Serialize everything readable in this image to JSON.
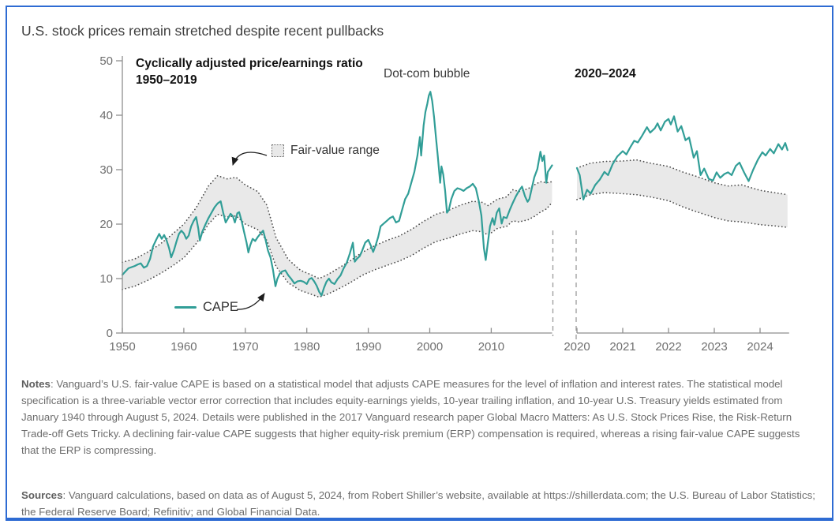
{
  "figure": {
    "title": "U.S. stock prices remain stretched despite recent pullbacks",
    "notes_label": "Notes",
    "notes_text": ": Vanguard’s U.S. fair-value CAPE is based on a statistical model that adjusts CAPE measures for the level of inflation and interest rates. The statistical model specification is a three-variable vector error correction that includes equity-earnings yields, 10-year trailing inflation, and 10-year U.S. Treasury yields estimated from January 1940 through August 5, 2024. Details were published in the 2017 Vanguard research paper Global Macro Matters: As U.S. Stock Prices Rise, the Risk-Return Trade-off Gets Tricky. A declining fair-value CAPE suggests that higher equity-risk premium (ERP) compensation is required, whereas a rising fair-value CAPE suggests that the ERP is compressing.",
    "sources_label": "Sources",
    "sources_text": ": Vanguard calculations, based on data as of August 5, 2024, from Robert Shiller’s website, available at https://shillerdata.com; the U.S. Bureau of Labor Statistics; the Federal Reserve Board; Refinitiv; and Global Financial Data."
  },
  "colors": {
    "border_blue": "#2e6bd3",
    "cape_teal": "#319e97",
    "band_fill": "#e9e9e9",
    "band_dots": "#4c4c4c",
    "axis_gray": "#8f8f8f",
    "tick_text": "#6f6f6f",
    "arrow": "#1d1d1d"
  },
  "chart_data": {
    "type": "line",
    "title": "Cyclically adjusted price/earnings ratio",
    "subtitle_left": "1950–2019",
    "title_right": "2020–2024",
    "annotation_dotcom": "Dot-com bubble",
    "legend_band": "Fair-value range",
    "legend_line": "CAPE",
    "ylabel": "",
    "xlabel": "",
    "ylim": [
      0,
      50
    ],
    "yticks": [
      0,
      10,
      20,
      30,
      40,
      50
    ],
    "grid": false,
    "left_panel": {
      "x_range": [
        1950,
        2019.9
      ],
      "xticks": [
        1950,
        1960,
        1970,
        1980,
        1990,
        2000,
        2010
      ],
      "cape": {
        "x": [
          1950.0,
          1950.5,
          1951.0,
          1951.5,
          1952.0,
          1952.5,
          1953.0,
          1953.5,
          1954.0,
          1954.5,
          1955.0,
          1955.5,
          1956.0,
          1956.4,
          1956.8,
          1957.2,
          1957.6,
          1957.95,
          1958.4,
          1958.8,
          1959.2,
          1959.6,
          1960.0,
          1960.4,
          1960.8,
          1961.2,
          1961.6,
          1962.0,
          1962.35,
          1962.6,
          1963.0,
          1963.5,
          1964.0,
          1964.5,
          1965.0,
          1965.5,
          1966.0,
          1966.4,
          1966.8,
          1967.2,
          1967.6,
          1968.0,
          1968.3,
          1968.7,
          1969.0,
          1969.4,
          1969.8,
          1970.2,
          1970.5,
          1970.8,
          1971.2,
          1971.6,
          1972.0,
          1972.5,
          1972.9,
          1973.3,
          1973.7,
          1974.1,
          1974.5,
          1974.9,
          1975.2,
          1975.6,
          1976.0,
          1976.5,
          1977.0,
          1977.5,
          1978.0,
          1978.5,
          1979.0,
          1979.5,
          1980.0,
          1980.4,
          1980.8,
          1981.2,
          1981.6,
          1982.0,
          1982.4,
          1982.8,
          1983.2,
          1983.6,
          1984.0,
          1984.5,
          1985.0,
          1985.5,
          1986.0,
          1986.5,
          1987.0,
          1987.5,
          1987.8,
          1988.2,
          1988.6,
          1989.0,
          1989.5,
          1990.0,
          1990.4,
          1990.8,
          1991.2,
          1991.6,
          1992.0,
          1992.5,
          1993.0,
          1993.5,
          1994.0,
          1994.5,
          1995.0,
          1995.5,
          1996.0,
          1996.5,
          1997.0,
          1997.5,
          1998.0,
          1998.4,
          1998.6,
          1999.0,
          1999.3,
          1999.6,
          1999.85,
          2000.1,
          2000.4,
          2000.7,
          2001.0,
          2001.3,
          2001.7,
          2001.9,
          2002.2,
          2002.5,
          2002.8,
          2003.1,
          2003.5,
          2004.0,
          2004.5,
          2005.0,
          2005.5,
          2006.0,
          2006.5,
          2007.0,
          2007.5,
          2008.0,
          2008.4,
          2008.8,
          2009.1,
          2009.4,
          2009.8,
          2010.2,
          2010.5,
          2010.9,
          2011.3,
          2011.7,
          2012.0,
          2012.5,
          2013.0,
          2013.5,
          2014.0,
          2014.5,
          2015.0,
          2015.5,
          2015.9,
          2016.2,
          2016.6,
          2017.0,
          2017.5,
          2018.0,
          2018.3,
          2018.6,
          2018.95,
          2019.2,
          2019.5,
          2019.9
        ],
        "y": [
          10.7,
          11.3,
          11.9,
          12.1,
          12.3,
          12.6,
          12.8,
          12.0,
          12.3,
          13.6,
          15.9,
          17.1,
          18.2,
          17.3,
          18.0,
          17.0,
          15.6,
          13.9,
          15.2,
          16.8,
          18.2,
          18.8,
          18.3,
          17.3,
          17.9,
          19.6,
          20.6,
          21.3,
          19.2,
          17.0,
          18.6,
          19.9,
          21.1,
          22.1,
          23.1,
          23.8,
          24.2,
          22.1,
          20.3,
          21.1,
          21.9,
          21.4,
          20.3,
          22.0,
          22.2,
          20.6,
          18.6,
          16.6,
          14.8,
          16.1,
          17.3,
          16.9,
          17.6,
          18.3,
          18.8,
          17.1,
          15.1,
          13.9,
          11.6,
          8.6,
          9.9,
          10.9,
          11.3,
          11.5,
          10.6,
          9.9,
          9.1,
          9.5,
          9.6,
          9.4,
          9.0,
          9.9,
          10.1,
          9.5,
          8.7,
          7.6,
          6.9,
          8.3,
          9.4,
          10.0,
          9.3,
          9.0,
          9.9,
          10.6,
          11.9,
          12.9,
          14.6,
          16.6,
          13.1,
          13.7,
          14.1,
          15.1,
          16.6,
          17.1,
          16.1,
          14.9,
          16.1,
          17.6,
          19.6,
          20.1,
          20.6,
          21.1,
          21.4,
          20.3,
          20.6,
          22.6,
          24.6,
          25.6,
          27.6,
          29.6,
          32.6,
          36.0,
          32.6,
          38.1,
          40.6,
          42.1,
          43.6,
          44.3,
          42.6,
          39.6,
          36.0,
          32.6,
          27.6,
          30.6,
          29.1,
          26.1,
          22.1,
          22.6,
          24.6,
          26.1,
          26.6,
          26.4,
          26.1,
          26.6,
          26.9,
          27.4,
          26.6,
          24.1,
          21.6,
          15.6,
          13.4,
          16.1,
          19.6,
          21.1,
          19.9,
          22.1,
          22.9,
          20.1,
          21.3,
          21.1,
          22.6,
          23.9,
          25.1,
          26.1,
          26.9,
          25.1,
          24.1,
          24.6,
          26.6,
          28.6,
          30.1,
          33.3,
          31.6,
          32.6,
          27.6,
          29.6,
          30.1,
          30.8
        ]
      },
      "band": {
        "x": [
          1950,
          1952,
          1954,
          1956,
          1958,
          1960,
          1962,
          1964,
          1965.5,
          1967,
          1968.5,
          1970,
          1972,
          1973.5,
          1975,
          1977,
          1979,
          1980.5,
          1982,
          1983.5,
          1985,
          1987,
          1989,
          1991,
          1993,
          1995,
          1997,
          1999,
          2001,
          2003,
          2005,
          2007,
          2008.5,
          2009.5,
          2011,
          2012.5,
          2013.5,
          2014.5,
          2016,
          2017,
          2018,
          2019,
          2019.9
        ],
        "top": [
          13.0,
          13.6,
          14.8,
          16.2,
          18.0,
          20.0,
          23.0,
          27.0,
          28.9,
          28.3,
          28.6,
          27.2,
          26.0,
          23.5,
          17.5,
          13.5,
          11.5,
          10.8,
          10.0,
          10.8,
          11.8,
          13.2,
          14.8,
          16.0,
          17.0,
          17.8,
          19.0,
          20.5,
          21.8,
          22.5,
          23.5,
          24.2,
          24.0,
          23.4,
          24.6,
          25.0,
          26.3,
          26.0,
          26.5,
          27.2,
          27.8,
          27.6,
          27.8
        ],
        "bottom": [
          8.0,
          8.6,
          9.6,
          10.8,
          12.2,
          13.8,
          16.4,
          20.0,
          21.8,
          21.3,
          21.5,
          20.0,
          19.0,
          17.0,
          12.2,
          9.2,
          7.8,
          7.2,
          6.6,
          7.2,
          8.0,
          9.2,
          10.6,
          11.6,
          12.4,
          13.2,
          14.2,
          15.6,
          16.8,
          17.4,
          18.2,
          18.8,
          18.6,
          18.0,
          19.2,
          19.6,
          20.6,
          20.4,
          20.8,
          21.4,
          22.2,
          22.8,
          24.0
        ]
      }
    },
    "right_panel": {
      "x_range": [
        2020,
        2024.6
      ],
      "xticks": [
        2020,
        2021,
        2022,
        2023,
        2024
      ],
      "cape": {
        "x": [
          2020.0,
          2020.06,
          2020.14,
          2020.22,
          2020.3,
          2020.4,
          2020.5,
          2020.6,
          2020.68,
          2020.78,
          2020.88,
          2021.0,
          2021.08,
          2021.17,
          2021.25,
          2021.33,
          2021.42,
          2021.53,
          2021.6,
          2021.7,
          2021.76,
          2021.83,
          2021.92,
          2022.0,
          2022.05,
          2022.12,
          2022.2,
          2022.28,
          2022.37,
          2022.45,
          2022.55,
          2022.62,
          2022.7,
          2022.78,
          2022.88,
          2022.97,
          2023.05,
          2023.13,
          2023.22,
          2023.3,
          2023.38,
          2023.47,
          2023.55,
          2023.65,
          2023.75,
          2023.85,
          2023.95,
          2024.05,
          2024.12,
          2024.22,
          2024.3,
          2024.4,
          2024.48,
          2024.55,
          2024.6
        ],
        "y": [
          30.3,
          29.0,
          24.5,
          26.3,
          25.6,
          27.2,
          28.2,
          29.6,
          29.0,
          31.0,
          32.4,
          33.4,
          32.8,
          34.2,
          35.3,
          35.0,
          36.2,
          37.8,
          36.8,
          37.6,
          38.5,
          37.2,
          38.8,
          39.3,
          38.3,
          39.8,
          37.0,
          38.0,
          35.4,
          35.9,
          32.2,
          33.4,
          29.0,
          30.2,
          28.3,
          28.0,
          29.5,
          28.5,
          29.2,
          29.5,
          29.0,
          30.7,
          31.3,
          29.5,
          27.9,
          30.0,
          31.8,
          33.2,
          32.6,
          33.8,
          33.0,
          34.7,
          33.7,
          34.9,
          33.6
        ]
      },
      "band": {
        "x": [
          2020.0,
          2020.3,
          2020.6,
          2021.0,
          2021.3,
          2021.6,
          2022.0,
          2022.3,
          2022.6,
          2023.0,
          2023.3,
          2023.6,
          2024.0,
          2024.3,
          2024.6
        ],
        "top": [
          30.3,
          31.2,
          31.5,
          31.6,
          31.8,
          31.2,
          30.6,
          29.6,
          28.8,
          27.6,
          27.0,
          27.2,
          26.2,
          25.8,
          25.4
        ],
        "bottom": [
          24.5,
          25.4,
          25.8,
          25.6,
          25.4,
          25.0,
          24.3,
          23.2,
          22.3,
          21.2,
          20.6,
          20.4,
          19.9,
          19.7,
          19.4
        ]
      }
    }
  }
}
